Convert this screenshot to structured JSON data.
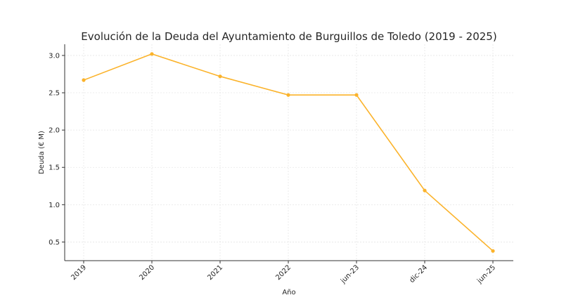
{
  "chart_data": {
    "type": "line",
    "title": "Evolución de la Deuda del Ayuntamiento de Burguillos de Toledo (2019 - 2025)",
    "xlabel": "Año",
    "ylabel": "Deuda (€ M)",
    "categories": [
      "2019",
      "2020",
      "2021",
      "2022",
      "jun-23",
      "dic-24",
      "jun-25"
    ],
    "values": [
      2.67,
      3.02,
      2.72,
      2.47,
      2.47,
      1.19,
      0.38
    ],
    "ylim": [
      0.25,
      3.15
    ],
    "yticks": [
      "0.5",
      "1.0",
      "1.5",
      "2.0",
      "2.5",
      "3.0"
    ],
    "grid": true,
    "color": "#fbb32b"
  }
}
